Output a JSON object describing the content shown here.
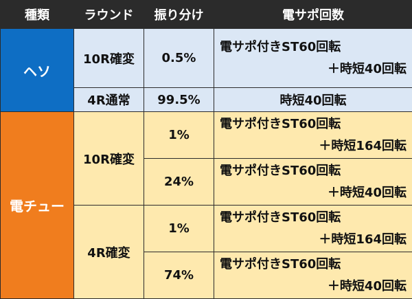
{
  "header": {
    "type": "種類",
    "round": "ラウンド",
    "ratio": "振り分け",
    "support": "電サポ回数"
  },
  "heso": {
    "label": "ヘソ",
    "rows": [
      {
        "round": "10R確変",
        "ratio": "0.5%",
        "support_line1": "電サポ付きST60回転",
        "support_line2": "＋時短40回転"
      },
      {
        "round": "4R通常",
        "ratio": "99.5%",
        "support": "時短40回転"
      }
    ]
  },
  "denchu": {
    "label": "電チュー",
    "groups": [
      {
        "round": "10R確変",
        "rows": [
          {
            "ratio": "1%",
            "support_line1": "電サポ付きST60回転",
            "support_line2": "＋時短164回転"
          },
          {
            "ratio": "24%",
            "support_line1": "電サポ付きST60回転",
            "support_line2": "＋時短40回転"
          }
        ]
      },
      {
        "round": "4R確変",
        "rows": [
          {
            "ratio": "1%",
            "support_line1": "電サポ付きST60回転",
            "support_line2": "＋時短164回転"
          },
          {
            "ratio": "74%",
            "support_line1": "電サポ付きST60回転",
            "support_line2": "＋時短40回転"
          }
        ]
      }
    ]
  },
  "colors": {
    "header_bg": "#2b2b2b",
    "heso_label_bg": "#0e6ec4",
    "heso_cell_bg": "#dbe7f5",
    "denchu_label_bg": "#f07d1e",
    "denchu_cell_bg": "#fee9ae"
  }
}
